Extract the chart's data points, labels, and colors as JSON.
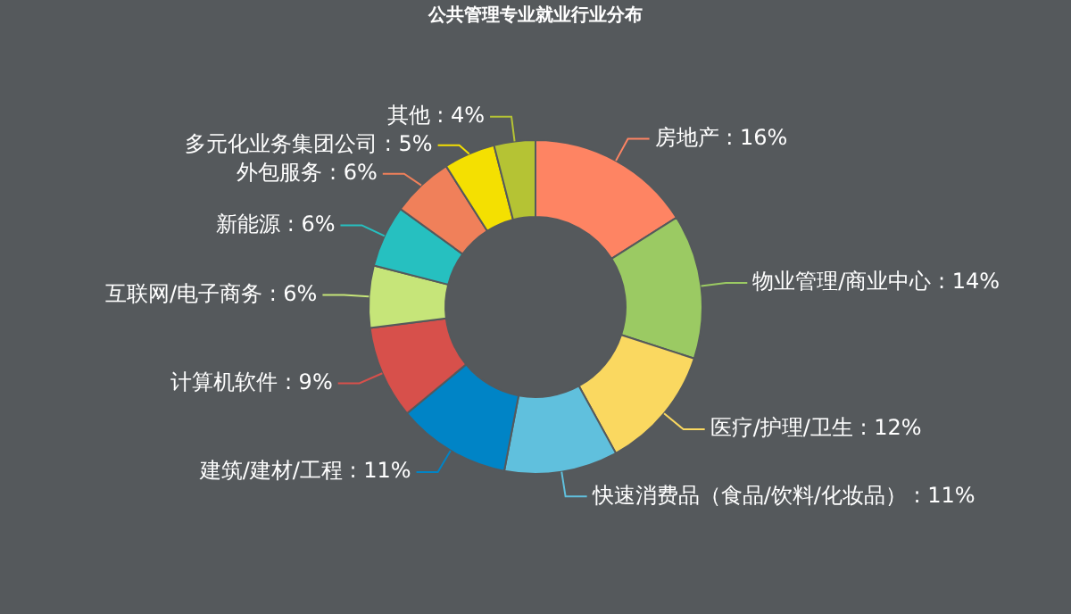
{
  "chart_data": {
    "type": "donut",
    "title": "公共管理专业就业行业分布",
    "categories": [
      "房地产",
      "物业管理/商业中心",
      "医疗/护理/卫生",
      "快速消费品（食品/饮料/化妆品）",
      "建筑/建材/工程",
      "计算机软件",
      "互联网/电子商务",
      "新能源",
      "外包服务",
      "多元化业务集团公司",
      "其他"
    ],
    "values": [
      16,
      14,
      12,
      11,
      11,
      9,
      6,
      6,
      6,
      5,
      4
    ],
    "value_labels": [
      "16%",
      "14%",
      "12%",
      "11%",
      "11%",
      "9%",
      "6%",
      "6%",
      "6%",
      "5%",
      "4%"
    ],
    "colors": [
      "#fe8463",
      "#9bca63",
      "#fad860",
      "#60c0dd",
      "#0084c6",
      "#d7504b",
      "#c6e579",
      "#26c0c0",
      "#f0805a",
      "#f4e001",
      "#b5c334"
    ]
  }
}
